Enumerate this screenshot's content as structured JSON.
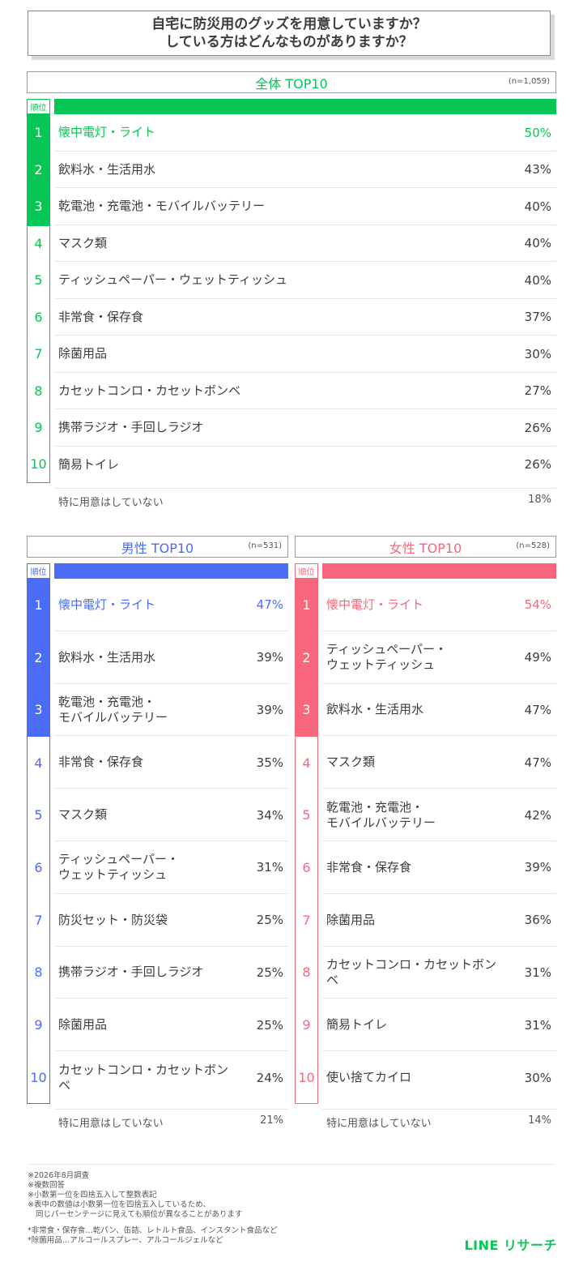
{
  "title": {
    "line1": "自宅に防災用のグッズを用意していますか？",
    "line2": "している方はどんなものがありますか？"
  },
  "rank_label": "順位",
  "none_label": "特に用意はしていない",
  "colors": {
    "overall": "#06c755",
    "male": "#4a6cf7",
    "female": "#f8677c"
  },
  "chart_data": [
    {
      "type": "table",
      "title": "全体 TOP10",
      "n": "(n=1,059)",
      "ranks": [
        "1",
        "2",
        "3",
        "4",
        "5",
        "6",
        "7",
        "8",
        "9",
        "10"
      ],
      "items": [
        "懐中電灯・ライト",
        "飲料水・生活用水",
        "乾電池・充電池・モバイルバッテリー",
        "マスク類",
        "ティッシュペーパー・ウェットティッシュ",
        "非常食・保存食",
        "除菌用品",
        "カセットコンロ・カセットボンベ",
        "携帯ラジオ・手回しラジオ",
        "簡易トイレ"
      ],
      "values": [
        "50%",
        "43%",
        "40%",
        "40%",
        "40%",
        "37%",
        "30%",
        "27%",
        "26%",
        "26%"
      ],
      "none_value": "18%"
    },
    {
      "type": "table",
      "title": "男性 TOP10",
      "n": "(n=531)",
      "ranks": [
        "1",
        "2",
        "3",
        "4",
        "5",
        "6",
        "7",
        "8",
        "9",
        "10"
      ],
      "items": [
        "懐中電灯・ライト",
        "飲料水・生活用水",
        "乾電池・充電池・\nモバイルバッテリー",
        "非常食・保存食",
        "マスク類",
        "ティッシュペーパー・\nウェットティッシュ",
        "防災セット・防災袋",
        "携帯ラジオ・手回しラジオ",
        "除菌用品",
        "カセットコンロ・カセットボンベ"
      ],
      "values": [
        "47%",
        "39%",
        "39%",
        "35%",
        "34%",
        "31%",
        "25%",
        "25%",
        "25%",
        "24%"
      ],
      "none_value": "21%"
    },
    {
      "type": "table",
      "title": "女性 TOP10",
      "n": "(n=528)",
      "ranks": [
        "1",
        "2",
        "3",
        "4",
        "5",
        "6",
        "7",
        "8",
        "9",
        "10"
      ],
      "items": [
        "懐中電灯・ライト",
        "ティッシュペーパー・\nウェットティッシュ",
        "飲料水・生活用水",
        "マスク類",
        "乾電池・充電池・\nモバイルバッテリー",
        "非常食・保存食",
        "除菌用品",
        "カセットコンロ・カセットボンベ",
        "簡易トイレ",
        "使い捨てカイロ"
      ],
      "values": [
        "54%",
        "49%",
        "47%",
        "47%",
        "42%",
        "39%",
        "36%",
        "31%",
        "31%",
        "30%"
      ],
      "none_value": "14%"
    }
  ],
  "notes": {
    "n1": "※2026年8月調査",
    "n2": "※複数回答",
    "n3": "※小数第一位を四捨五入して整数表記",
    "n4": "※表中の数値は小数第一位を四捨五入しているため、",
    "n5": "同じパーセンテージに見えても順位が異なることがあります",
    "n6": "*非常食・保存食…乾パン、缶詰、レトルト食品、インスタント食品など",
    "n7": "*除菌用品…アルコールスプレー、アルコールジェルなど"
  },
  "logo": "LINE リサーチ"
}
